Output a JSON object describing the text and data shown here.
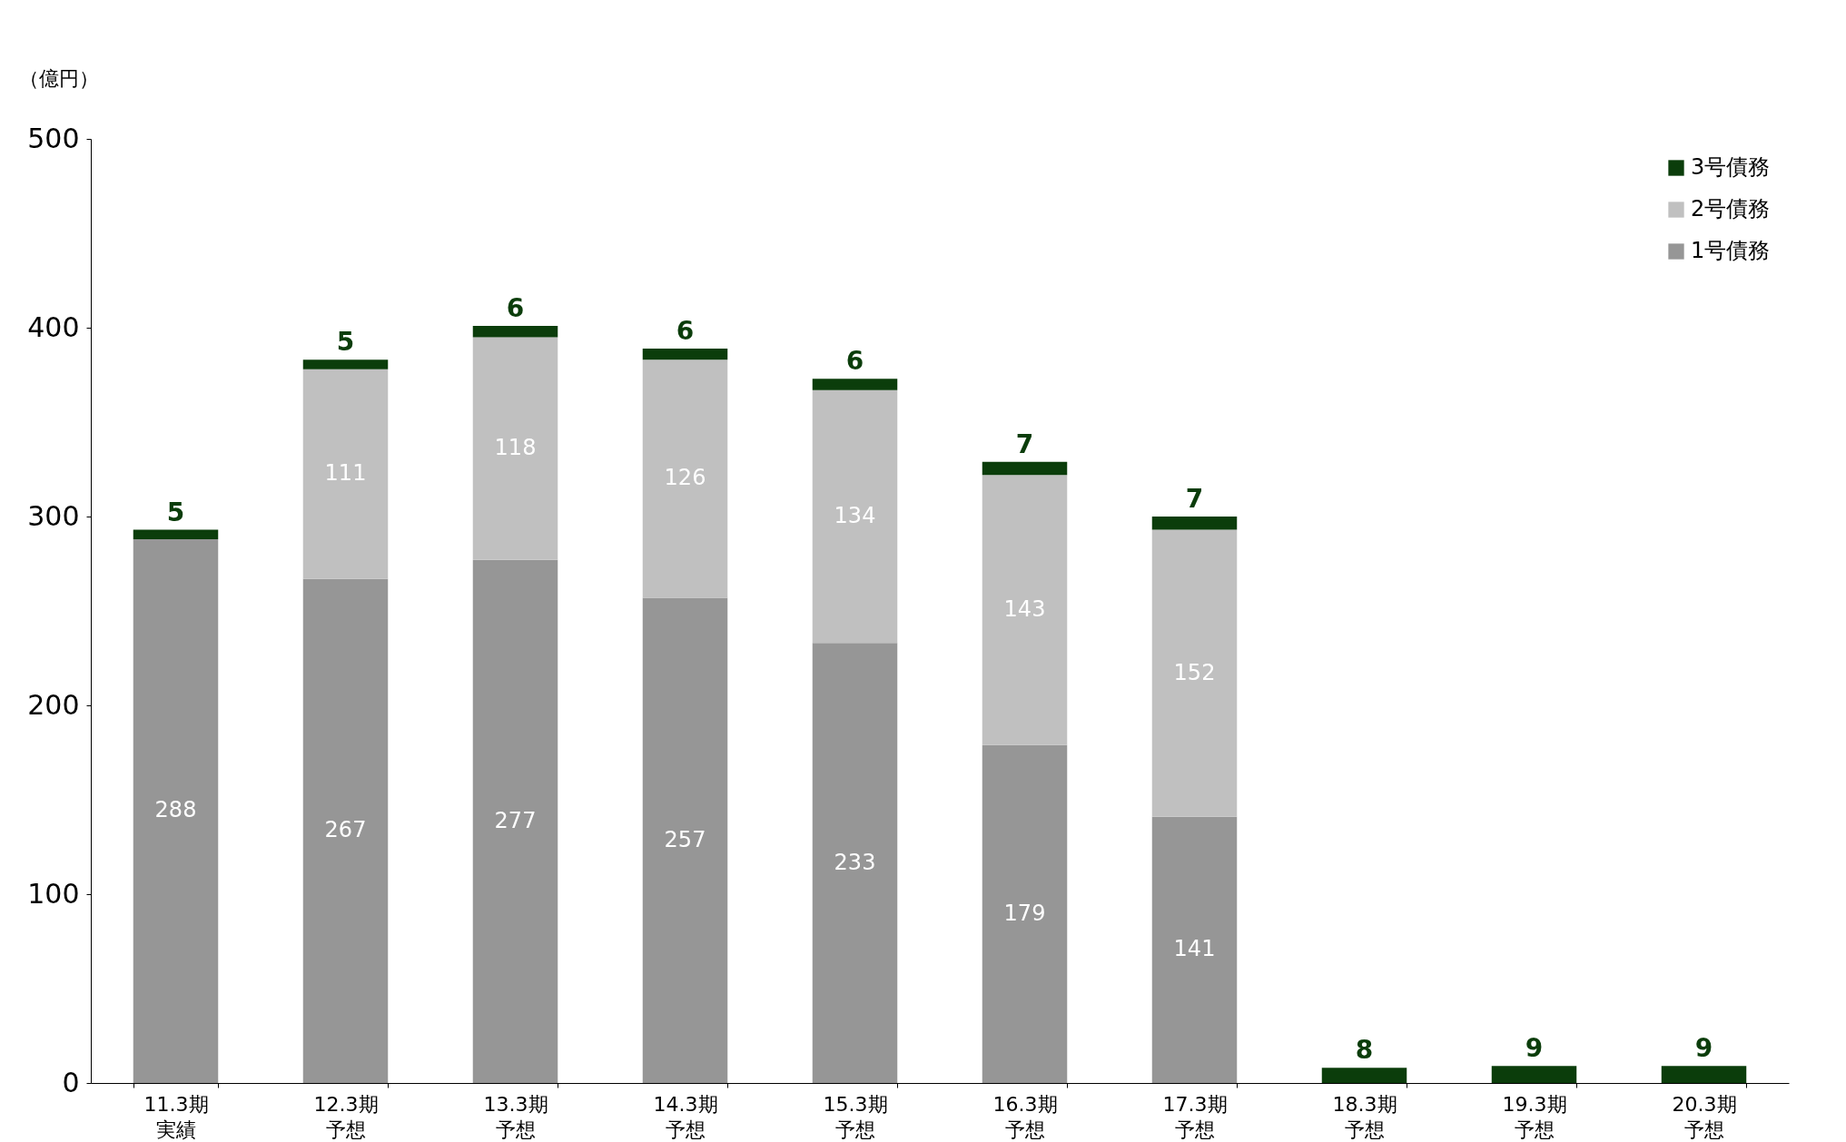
{
  "chart_data": {
    "type": "bar",
    "stacked": true,
    "ylabel": "（億円）",
    "categories": [
      "11.3期実績",
      "12.3期予想",
      "13.3期予想",
      "14.3期予想",
      "15.3期予想",
      "16.3期予想",
      "17.3期予想",
      "18.3期予想",
      "19.3期予想",
      "20.3期予想"
    ],
    "series": [
      {
        "name": "1号債務",
        "color": "#969696",
        "values": [
          288,
          267,
          277,
          257,
          233,
          179,
          141,
          null,
          null,
          null
        ]
      },
      {
        "name": "2号債務",
        "color": "#c0c0c0",
        "values": [
          null,
          111,
          118,
          126,
          134,
          143,
          152,
          null,
          null,
          null
        ]
      },
      {
        "name": "3号債務",
        "color": "#0b3d0b",
        "values": [
          5,
          5,
          6,
          6,
          6,
          7,
          7,
          8,
          9,
          9
        ]
      }
    ],
    "ylim": [
      0,
      500
    ],
    "yticks": [
      0,
      100,
      200,
      300,
      400,
      500
    ],
    "grid": false,
    "legend": "top right",
    "data_labels": true
  }
}
